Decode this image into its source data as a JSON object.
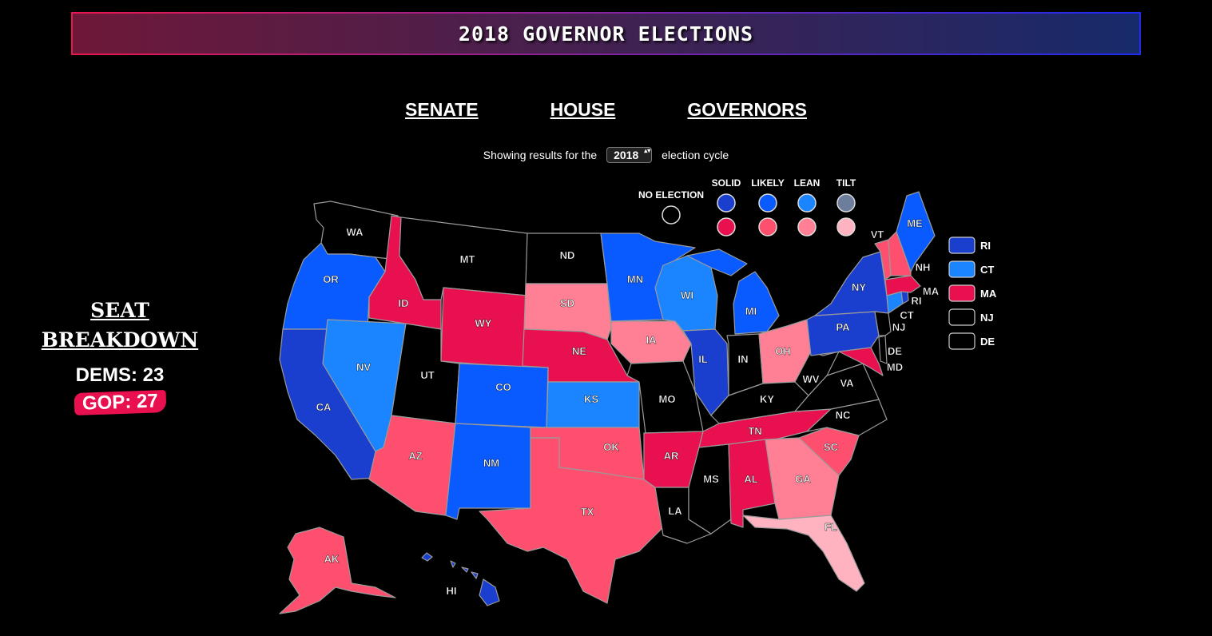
{
  "page": {
    "title": "2018 GOVERNOR ELECTIONS",
    "nav": [
      "SENATE",
      "HOUSE",
      "GOVERNORS"
    ],
    "cycle_prefix": "Showing results for the",
    "cycle_value": "2018",
    "cycle_suffix": "election cycle"
  },
  "breakdown": {
    "title_line1": "SEAT",
    "title_line2": "BREAKDOWN",
    "dems": "DEMS: 23",
    "gop": "GOP: 27"
  },
  "legend": {
    "no_election": "NO ELECTION",
    "columns": [
      "SOLID",
      "LIKELY",
      "LEAN",
      "TILT"
    ]
  },
  "colors": {
    "none": "#000000",
    "d_solid": "#1a3fcf",
    "d_likely": "#0a5bff",
    "d_lean": "#1a85ff",
    "d_tilt": "#6c7e9b",
    "r_solid": "#e8104f",
    "r_likely": "#ff4f6e",
    "r_lean": "#ff8095",
    "r_tilt": "#ffb3c0"
  },
  "small_states": [
    {
      "label": "RI",
      "rating": "d_solid"
    },
    {
      "label": "CT",
      "rating": "d_lean"
    },
    {
      "label": "MA",
      "rating": "r_solid"
    },
    {
      "label": "NJ",
      "rating": "none"
    },
    {
      "label": "DE",
      "rating": "none"
    }
  ],
  "states": [
    {
      "id": "WA",
      "rating": "none"
    },
    {
      "id": "OR",
      "rating": "d_likely"
    },
    {
      "id": "CA",
      "rating": "d_solid"
    },
    {
      "id": "NV",
      "rating": "d_lean"
    },
    {
      "id": "ID",
      "rating": "r_solid"
    },
    {
      "id": "MT",
      "rating": "none"
    },
    {
      "id": "WY",
      "rating": "r_solid"
    },
    {
      "id": "UT",
      "rating": "none"
    },
    {
      "id": "AZ",
      "rating": "r_likely"
    },
    {
      "id": "CO",
      "rating": "d_likely"
    },
    {
      "id": "NM",
      "rating": "d_likely"
    },
    {
      "id": "ND",
      "rating": "none"
    },
    {
      "id": "SD",
      "rating": "r_lean"
    },
    {
      "id": "NE",
      "rating": "r_solid"
    },
    {
      "id": "KS",
      "rating": "d_lean"
    },
    {
      "id": "OK",
      "rating": "r_likely"
    },
    {
      "id": "TX",
      "rating": "r_likely"
    },
    {
      "id": "MN",
      "rating": "d_likely"
    },
    {
      "id": "IA",
      "rating": "r_lean"
    },
    {
      "id": "MO",
      "rating": "none"
    },
    {
      "id": "AR",
      "rating": "r_solid"
    },
    {
      "id": "LA",
      "rating": "none"
    },
    {
      "id": "WI",
      "rating": "d_lean"
    },
    {
      "id": "IL",
      "rating": "d_solid"
    },
    {
      "id": "MI",
      "rating": "d_likely"
    },
    {
      "id": "IN",
      "rating": "none"
    },
    {
      "id": "OH",
      "rating": "r_lean"
    },
    {
      "id": "KY",
      "rating": "none"
    },
    {
      "id": "TN",
      "rating": "r_solid"
    },
    {
      "id": "MS",
      "rating": "none"
    },
    {
      "id": "AL",
      "rating": "r_solid"
    },
    {
      "id": "GA",
      "rating": "r_lean"
    },
    {
      "id": "FL",
      "rating": "r_tilt"
    },
    {
      "id": "SC",
      "rating": "r_likely"
    },
    {
      "id": "NC",
      "rating": "none"
    },
    {
      "id": "VA",
      "rating": "none"
    },
    {
      "id": "WV",
      "rating": "none"
    },
    {
      "id": "PA",
      "rating": "d_solid"
    },
    {
      "id": "NY",
      "rating": "d_solid"
    },
    {
      "id": "MD",
      "rating": "r_solid"
    },
    {
      "id": "DE",
      "rating": "none"
    },
    {
      "id": "NJ",
      "rating": "none"
    },
    {
      "id": "CT",
      "rating": "d_lean"
    },
    {
      "id": "RI",
      "rating": "d_solid"
    },
    {
      "id": "MA",
      "rating": "r_solid"
    },
    {
      "id": "VT",
      "rating": "r_likely"
    },
    {
      "id": "NH",
      "rating": "r_likely"
    },
    {
      "id": "ME",
      "rating": "d_likely"
    },
    {
      "id": "AK",
      "rating": "r_likely"
    },
    {
      "id": "HI",
      "rating": "d_solid"
    }
  ]
}
